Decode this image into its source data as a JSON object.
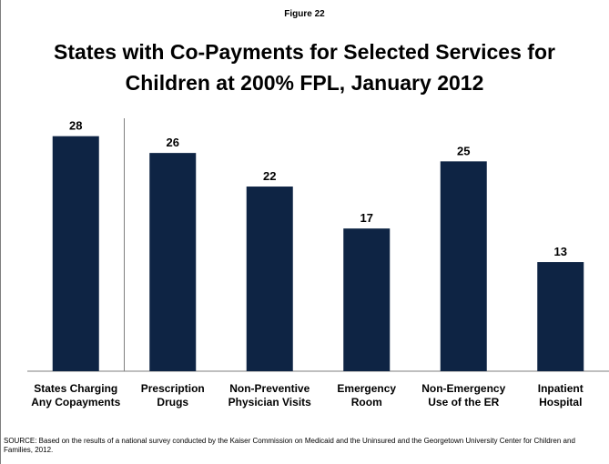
{
  "figure_label": "Figure 22",
  "title_line1": "States with Co-Payments for Selected Services for",
  "title_line2": "Children at 200% FPL, January 2012",
  "source": "SOURCE: Based on the results of a national survey conducted by the Kaiser Commission on Medicaid and the Uninsured and the Georgetown University Center for Children and Families, 2012.",
  "colors": {
    "bar": "#0e2444",
    "axis": "#7f7f7f",
    "text": "#000000"
  },
  "chart_data": {
    "type": "bar",
    "title": "States with Co-Payments for Selected Services for Children at 200% FPL, January 2012",
    "categories": [
      [
        "States Charging",
        "Any Copayments"
      ],
      [
        "Prescription",
        "Drugs"
      ],
      [
        "Non-Preventive",
        "Physician Visits"
      ],
      [
        "Emergency",
        "Room"
      ],
      [
        "Non-Emergency",
        "Use of the ER"
      ],
      [
        "Inpatient",
        "Hospital"
      ]
    ],
    "values": [
      28,
      26,
      22,
      17,
      25,
      13
    ],
    "data_labels": [
      "28",
      "26",
      "22",
      "17",
      "25",
      "13"
    ],
    "ylim": [
      0,
      31
    ],
    "grid": false,
    "legend": "none",
    "separator_after_index": 0
  }
}
